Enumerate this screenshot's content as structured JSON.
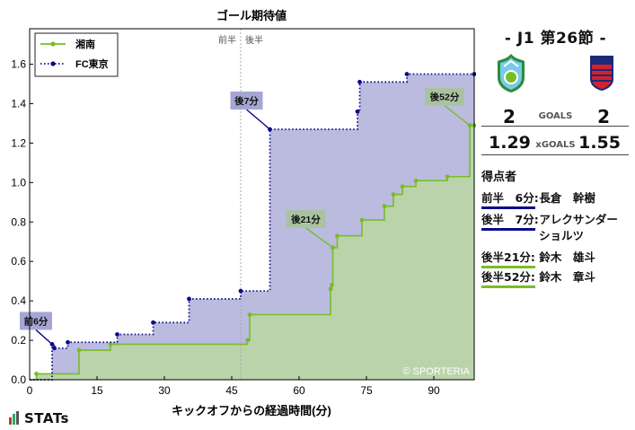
{
  "chart_data": {
    "type": "line",
    "step": true,
    "title": "ゴール期待値",
    "xlabel": "キックオフからの経過時間(分)",
    "ylabel": "",
    "xlim": [
      0,
      99
    ],
    "ylim": [
      0,
      1.78
    ],
    "xticks": [
      0,
      15,
      30,
      45,
      60,
      75,
      90
    ],
    "yticks": [
      0.0,
      0.2,
      0.4,
      0.6,
      0.8,
      1.0,
      1.2,
      1.4,
      1.6
    ],
    "halftime_minute": 47,
    "halftime_labels": [
      "前半",
      "後半"
    ],
    "watermark": "© SPORTERIA",
    "legend_position": "top-left",
    "series": [
      {
        "name": "湘南",
        "color": "#78bc28",
        "style": "solid",
        "fill": "#b9d4a8",
        "points": [
          [
            1.5,
            0.03
          ],
          [
            11,
            0.15
          ],
          [
            18,
            0.18
          ],
          [
            48.5,
            0.2
          ],
          [
            49,
            0.33
          ],
          [
            67,
            0.46
          ],
          [
            67.3,
            0.48
          ],
          [
            67.5,
            0.67
          ],
          [
            68.5,
            0.73
          ],
          [
            74,
            0.81
          ],
          [
            79,
            0.88
          ],
          [
            81,
            0.94
          ],
          [
            83,
            0.98
          ],
          [
            86,
            1.01
          ],
          [
            93,
            1.03
          ],
          [
            98,
            1.29
          ],
          [
            99,
            1.29
          ]
        ]
      },
      {
        "name": "FC東京",
        "color": "#0a0a8c",
        "style": "dotted",
        "fill": "#b4b4dc",
        "points": [
          [
            5,
            0.18
          ],
          [
            5.5,
            0.16
          ],
          [
            8.5,
            0.19
          ],
          [
            19.5,
            0.23
          ],
          [
            27.5,
            0.29
          ],
          [
            35.5,
            0.41
          ],
          [
            47,
            0.45
          ],
          [
            53.5,
            1.27
          ],
          [
            73,
            1.36
          ],
          [
            73.5,
            1.51
          ],
          [
            84,
            1.55
          ],
          [
            99,
            1.55
          ]
        ]
      }
    ],
    "annotations": [
      {
        "label": "前6分",
        "minute": 5,
        "series": "FC東京"
      },
      {
        "label": "後7分",
        "minute": 53.5,
        "series": "FC東京"
      },
      {
        "label": "後21分",
        "minute": 67.5,
        "series": "湘南"
      },
      {
        "label": "後52分",
        "minute": 98,
        "series": "湘南"
      }
    ]
  },
  "match": {
    "title": "-  J1 第26節  -",
    "home_team": "湘南",
    "away_team": "FC東京",
    "home_goals": "2",
    "away_goals": "2",
    "goals_label": "GOALS",
    "home_xg": "1.29",
    "away_xg": "1.55",
    "xg_label": "xGOALS",
    "home_color": "#78bc28",
    "away_color": "#0a0a8c"
  },
  "scorers": {
    "title": "得点者",
    "items": [
      {
        "time": "前半　6分:",
        "name": "長倉　幹樹",
        "team": "away"
      },
      {
        "time": "後半　7分:",
        "name": "アレクサンダー",
        "name2": "ショルツ",
        "team": "away"
      },
      {
        "time": "後半21分:",
        "name": "鈴木　雄斗",
        "team": "home"
      },
      {
        "time": "後半52分:",
        "name": "鈴木　章斗",
        "team": "home"
      }
    ]
  },
  "brand": {
    "text": "STATs",
    "bar_colors": [
      "#c0392b",
      "#27ae60",
      "#555555"
    ]
  },
  "crests": {
    "home": "湘南ベルマーレ emblem",
    "away": "FC東京 emblem"
  }
}
